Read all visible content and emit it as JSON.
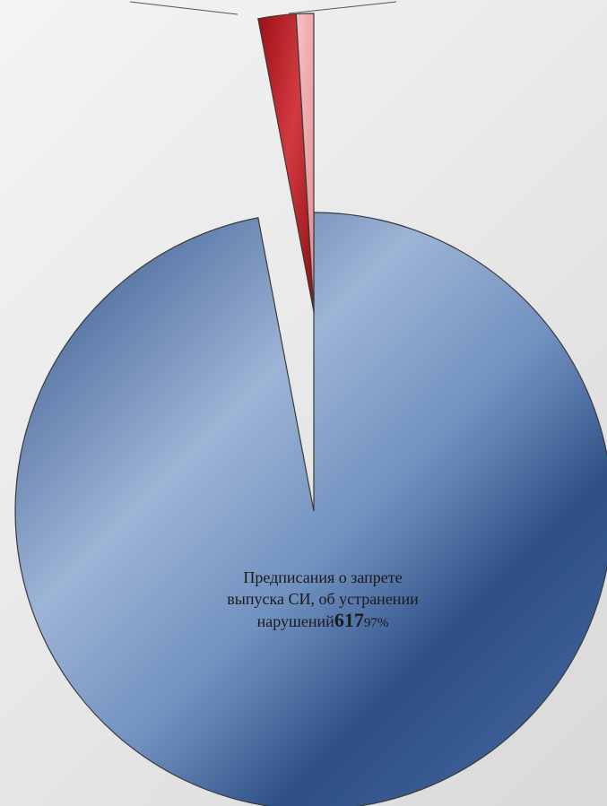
{
  "chart_data": {
    "type": "pie",
    "exploded": true,
    "slices": [
      {
        "label": "Предписания о запрете выпуска СИ, об устранении нарушений",
        "value": 617,
        "percent": "97%",
        "color": "#3a5f94"
      },
      {
        "label": "",
        "value": 13,
        "color": "#b81c24"
      },
      {
        "label": "",
        "value": 6,
        "color": "#f2a7aa"
      }
    ]
  },
  "labels": {
    "main_line1": "Предписания о запрете",
    "main_line2": "выпуска СИ, об устранении",
    "main_line3": "нарушений",
    "main_value": "617",
    "main_percent": "97%"
  }
}
